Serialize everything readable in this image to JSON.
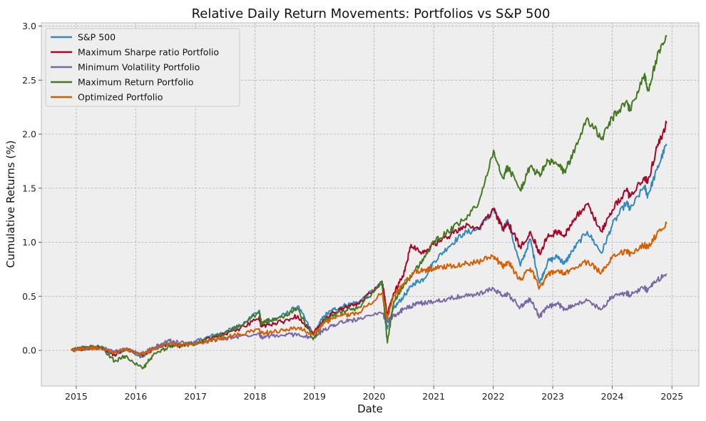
{
  "chart_data": {
    "type": "line",
    "title": "Relative Daily Return Movements: Portfolios vs S&P 500",
    "xlabel": "Date",
    "ylabel": "Cumulative Returns (%)",
    "xlim": [
      "2014-06-01",
      "2025-06-15"
    ],
    "ylim": [
      -0.33,
      3.03
    ],
    "xticks": [
      "2015",
      "2016",
      "2017",
      "2018",
      "2019",
      "2020",
      "2021",
      "2022",
      "2023",
      "2024",
      "2025"
    ],
    "yticks": [
      "0.0",
      "0.5",
      "1.0",
      "1.5",
      "2.0",
      "2.5",
      "3.0"
    ],
    "grid": true,
    "legend_position": "top-left",
    "series": [
      {
        "name": "S&P 500",
        "color": "#348ABD",
        "x": [
          "2014-12-01",
          "2015-03-01",
          "2015-06-01",
          "2015-08-25",
          "2015-11-01",
          "2016-02-11",
          "2016-04-15",
          "2016-07-15",
          "2016-10-01",
          "2017-01-01",
          "2017-04-01",
          "2017-07-01",
          "2017-10-01",
          "2018-01-26",
          "2018-02-09",
          "2018-04-01",
          "2018-07-01",
          "2018-09-20",
          "2018-12-24",
          "2019-03-01",
          "2019-05-01",
          "2019-07-15",
          "2019-10-01",
          "2020-02-19",
          "2020-03-23",
          "2020-05-01",
          "2020-07-01",
          "2020-09-01",
          "2020-11-01",
          "2021-01-01",
          "2021-04-01",
          "2021-07-01",
          "2021-10-01",
          "2022-01-03",
          "2022-03-01",
          "2022-04-01",
          "2022-06-16",
          "2022-08-16",
          "2022-10-12",
          "2022-12-01",
          "2023-02-01",
          "2023-03-13",
          "2023-05-01",
          "2023-07-31",
          "2023-10-27",
          "2024-01-01",
          "2024-03-28",
          "2024-04-19",
          "2024-07-16",
          "2024-08-05",
          "2024-10-01",
          "2024-11-29"
        ],
        "values": [
          0.0,
          0.03,
          0.03,
          -0.05,
          0.02,
          -0.06,
          0.02,
          0.06,
          0.05,
          0.08,
          0.13,
          0.17,
          0.23,
          0.37,
          0.25,
          0.27,
          0.33,
          0.41,
          0.15,
          0.32,
          0.38,
          0.42,
          0.45,
          0.62,
          0.2,
          0.39,
          0.5,
          0.62,
          0.66,
          0.82,
          0.96,
          1.08,
          1.12,
          1.3,
          1.12,
          1.2,
          0.78,
          1.03,
          0.62,
          0.82,
          0.87,
          0.8,
          0.92,
          1.1,
          0.9,
          1.16,
          1.37,
          1.3,
          1.52,
          1.43,
          1.67,
          1.91
        ]
      },
      {
        "name": "Maximum Sharpe ratio Portfolio",
        "color": "#A60628",
        "x": [
          "2014-12-01",
          "2015-03-01",
          "2015-06-01",
          "2015-08-25",
          "2015-11-01",
          "2016-02-11",
          "2016-04-15",
          "2016-07-15",
          "2016-10-01",
          "2017-01-01",
          "2017-04-01",
          "2017-07-01",
          "2017-10-01",
          "2018-01-26",
          "2018-02-09",
          "2018-04-01",
          "2018-07-01",
          "2018-09-20",
          "2018-12-24",
          "2019-03-01",
          "2019-05-01",
          "2019-07-15",
          "2019-10-01",
          "2020-02-19",
          "2020-03-23",
          "2020-05-01",
          "2020-07-01",
          "2020-08-15",
          "2020-11-01",
          "2021-01-01",
          "2021-04-01",
          "2021-07-01",
          "2021-10-01",
          "2022-01-03",
          "2022-03-01",
          "2022-04-01",
          "2022-06-16",
          "2022-08-16",
          "2022-10-12",
          "2022-12-01",
          "2023-02-01",
          "2023-03-13",
          "2023-05-01",
          "2023-07-31",
          "2023-10-27",
          "2024-01-01",
          "2024-03-28",
          "2024-04-19",
          "2024-07-16",
          "2024-08-05",
          "2024-10-01",
          "2024-11-29"
        ],
        "values": [
          0.0,
          0.02,
          0.02,
          -0.04,
          0.01,
          -0.05,
          0.01,
          0.05,
          0.04,
          0.07,
          0.11,
          0.15,
          0.2,
          0.3,
          0.22,
          0.24,
          0.27,
          0.32,
          0.15,
          0.28,
          0.35,
          0.4,
          0.43,
          0.64,
          0.33,
          0.53,
          0.7,
          0.98,
          0.9,
          0.98,
          1.05,
          1.15,
          1.13,
          1.3,
          1.12,
          1.18,
          0.95,
          1.1,
          0.9,
          1.05,
          1.1,
          1.05,
          1.2,
          1.35,
          1.1,
          1.3,
          1.48,
          1.42,
          1.6,
          1.55,
          1.88,
          2.1
        ]
      },
      {
        "name": "Minimum Volatility Portfolio",
        "color": "#7A68A6",
        "x": [
          "2014-12-01",
          "2015-03-01",
          "2015-06-01",
          "2015-08-25",
          "2015-11-01",
          "2016-02-11",
          "2016-04-15",
          "2016-07-15",
          "2016-10-01",
          "2017-01-01",
          "2017-04-01",
          "2017-07-01",
          "2017-10-01",
          "2018-01-26",
          "2018-02-09",
          "2018-04-01",
          "2018-07-01",
          "2018-09-20",
          "2018-12-24",
          "2019-03-01",
          "2019-05-01",
          "2019-07-15",
          "2019-10-01",
          "2020-02-19",
          "2020-03-23",
          "2020-05-01",
          "2020-07-01",
          "2020-09-01",
          "2020-11-01",
          "2021-01-01",
          "2021-04-01",
          "2021-07-01",
          "2021-10-01",
          "2022-01-03",
          "2022-03-01",
          "2022-04-01",
          "2022-06-16",
          "2022-08-16",
          "2022-10-12",
          "2022-12-01",
          "2023-02-01",
          "2023-03-13",
          "2023-05-01",
          "2023-07-31",
          "2023-10-27",
          "2024-01-01",
          "2024-03-28",
          "2024-04-19",
          "2024-07-16",
          "2024-08-05",
          "2024-10-01",
          "2024-11-29"
        ],
        "values": [
          0.0,
          0.02,
          0.02,
          -0.01,
          0.01,
          -0.03,
          0.02,
          0.09,
          0.07,
          0.07,
          0.09,
          0.11,
          0.13,
          0.16,
          0.12,
          0.13,
          0.14,
          0.15,
          0.11,
          0.19,
          0.24,
          0.27,
          0.29,
          0.34,
          0.27,
          0.32,
          0.38,
          0.42,
          0.44,
          0.45,
          0.48,
          0.5,
          0.52,
          0.57,
          0.5,
          0.52,
          0.4,
          0.48,
          0.31,
          0.4,
          0.43,
          0.38,
          0.42,
          0.46,
          0.38,
          0.5,
          0.53,
          0.51,
          0.58,
          0.55,
          0.65,
          0.71
        ]
      },
      {
        "name": "Maximum Return Portfolio",
        "color": "#467821",
        "x": [
          "2014-12-01",
          "2015-03-01",
          "2015-06-01",
          "2015-08-25",
          "2015-11-01",
          "2016-02-11",
          "2016-04-15",
          "2016-07-15",
          "2016-10-01",
          "2017-01-01",
          "2017-04-01",
          "2017-07-01",
          "2017-10-01",
          "2018-01-26",
          "2018-02-09",
          "2018-04-01",
          "2018-07-01",
          "2018-09-20",
          "2018-12-24",
          "2019-03-01",
          "2019-05-01",
          "2019-07-15",
          "2019-10-01",
          "2020-02-19",
          "2020-03-23",
          "2020-05-01",
          "2020-07-01",
          "2020-09-01",
          "2020-11-01",
          "2021-01-01",
          "2021-04-01",
          "2021-07-01",
          "2021-10-01",
          "2022-01-03",
          "2022-03-01",
          "2022-04-01",
          "2022-06-16",
          "2022-08-16",
          "2022-10-12",
          "2022-12-01",
          "2023-02-01",
          "2023-03-13",
          "2023-05-01",
          "2023-07-31",
          "2023-10-27",
          "2024-01-01",
          "2024-03-28",
          "2024-04-19",
          "2024-07-16",
          "2024-08-05",
          "2024-10-01",
          "2024-11-29"
        ],
        "values": [
          0.0,
          0.03,
          0.03,
          -0.1,
          -0.05,
          -0.17,
          -0.05,
          0.03,
          0.04,
          0.06,
          0.11,
          0.16,
          0.23,
          0.35,
          0.25,
          0.28,
          0.32,
          0.39,
          0.1,
          0.28,
          0.33,
          0.37,
          0.4,
          0.63,
          0.07,
          0.45,
          0.6,
          0.72,
          0.85,
          1.0,
          1.1,
          1.2,
          1.35,
          1.85,
          1.6,
          1.7,
          1.48,
          1.7,
          1.62,
          1.75,
          1.72,
          1.65,
          1.8,
          2.15,
          1.95,
          2.15,
          2.3,
          2.22,
          2.55,
          2.4,
          2.7,
          2.9
        ]
      },
      {
        "name": "Optimized Portfolio",
        "color": "#D55E00",
        "x": [
          "2014-12-01",
          "2015-03-01",
          "2015-06-01",
          "2015-08-25",
          "2015-11-01",
          "2016-02-11",
          "2016-04-15",
          "2016-07-15",
          "2016-10-01",
          "2017-01-01",
          "2017-04-01",
          "2017-07-01",
          "2017-10-01",
          "2018-01-26",
          "2018-02-09",
          "2018-04-01",
          "2018-07-01",
          "2018-09-20",
          "2018-12-24",
          "2019-03-01",
          "2019-05-01",
          "2019-07-15",
          "2019-10-01",
          "2020-02-19",
          "2020-03-23",
          "2020-05-01",
          "2020-07-01",
          "2020-09-01",
          "2020-11-01",
          "2021-01-01",
          "2021-04-01",
          "2021-07-01",
          "2021-10-01",
          "2022-01-03",
          "2022-03-01",
          "2022-04-01",
          "2022-06-16",
          "2022-08-16",
          "2022-10-12",
          "2022-12-01",
          "2023-02-01",
          "2023-03-13",
          "2023-05-01",
          "2023-07-31",
          "2023-10-27",
          "2024-01-01",
          "2024-03-28",
          "2024-04-19",
          "2024-07-16",
          "2024-08-05",
          "2024-10-01",
          "2024-11-29"
        ],
        "values": [
          0.0,
          0.02,
          0.02,
          -0.02,
          0.01,
          -0.04,
          0.01,
          0.06,
          0.05,
          0.06,
          0.09,
          0.12,
          0.15,
          0.2,
          0.16,
          0.17,
          0.19,
          0.21,
          0.14,
          0.25,
          0.3,
          0.33,
          0.35,
          0.53,
          0.3,
          0.5,
          0.62,
          0.72,
          0.74,
          0.76,
          0.78,
          0.8,
          0.82,
          0.87,
          0.78,
          0.82,
          0.65,
          0.76,
          0.58,
          0.7,
          0.74,
          0.7,
          0.76,
          0.82,
          0.72,
          0.87,
          0.92,
          0.89,
          0.98,
          0.95,
          1.08,
          1.17
        ]
      }
    ]
  }
}
